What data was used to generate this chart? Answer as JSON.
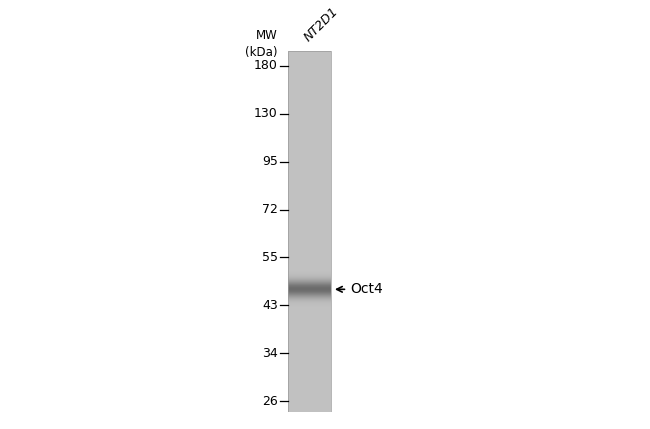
{
  "background_color": "#ffffff",
  "mw_markers": [
    180,
    130,
    95,
    72,
    55,
    43,
    34,
    26
  ],
  "mw_label_line1": "MW",
  "mw_label_line2": "(kDa)",
  "sample_label": "NT2D1",
  "band_kda": 47,
  "band_label": "Oct4",
  "band_gray": 0.42,
  "lane_gray": 0.76,
  "band_sigma_kda": 1.5,
  "font_size_mw": 9,
  "font_size_sample": 9,
  "font_size_band": 10,
  "font_size_mw_label": 8.5,
  "tick_color": "#000000",
  "text_color": "#000000"
}
